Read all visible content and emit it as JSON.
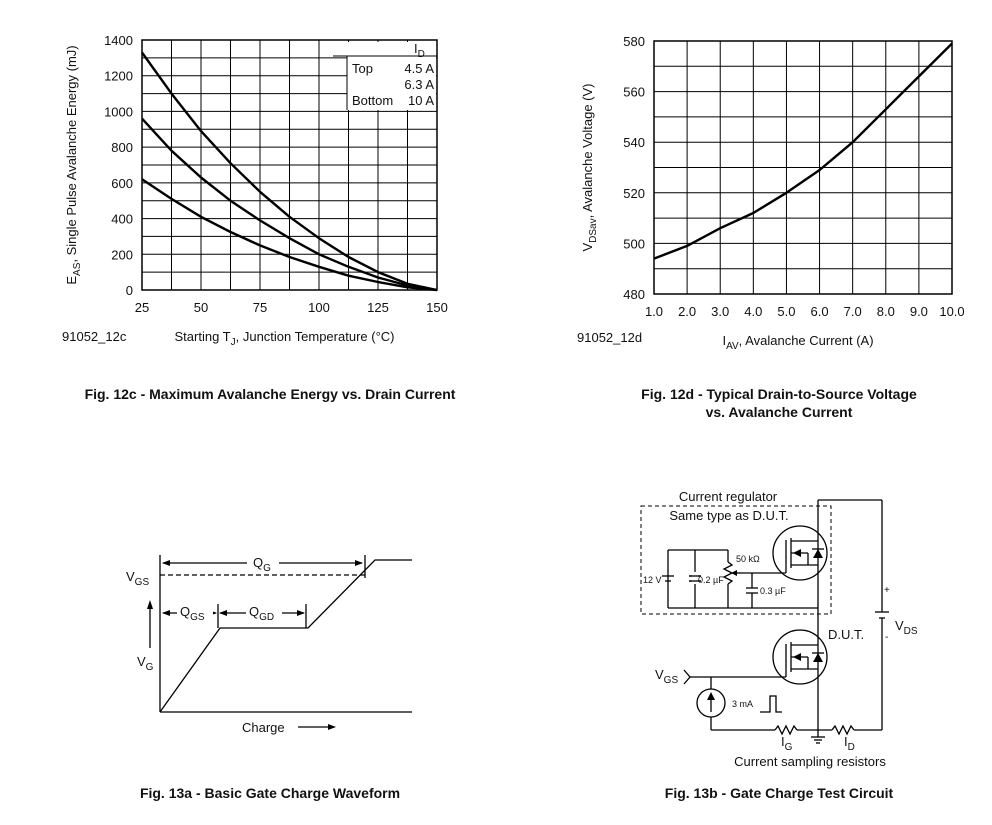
{
  "chart_data": [
    {
      "type": "line",
      "figure_id": "91052_12c",
      "caption": "Fig. 12c - Maximum Avalanche Energy vs. Drain Current",
      "x_label": {
        "pre": "Starting T",
        "sub": "J",
        "post": ", Junction Temperature (°C)"
      },
      "y_label": {
        "pre": "E",
        "sub": "AS",
        "post": ", Single Pulse Avalanche Energy (mJ)"
      },
      "x": [
        25,
        37.5,
        50,
        62.5,
        75,
        87.5,
        100,
        112.5,
        125,
        137.5,
        150
      ],
      "xlim": [
        25,
        150
      ],
      "xticks": [
        25,
        50,
        75,
        100,
        125,
        150
      ],
      "ylim": [
        0,
        1400
      ],
      "yticks": [
        0,
        200,
        400,
        600,
        800,
        1000,
        1200,
        1400
      ],
      "grid": true,
      "legend": {
        "title": {
          "pre": "I",
          "sub": "D"
        },
        "top_label": "Top",
        "bottom_label": "Bottom",
        "position": "upper right"
      },
      "series": [
        {
          "name": "4.5 A",
          "color": "#000000",
          "values": [
            1330,
            1100,
            890,
            710,
            550,
            410,
            290,
            185,
            100,
            35,
            0
          ]
        },
        {
          "name": "6.3 A",
          "color": "#000000",
          "values": [
            960,
            780,
            630,
            500,
            390,
            290,
            200,
            130,
            70,
            25,
            0
          ]
        },
        {
          "name": "10 A",
          "color": "#000000",
          "values": [
            620,
            510,
            410,
            325,
            250,
            185,
            130,
            80,
            45,
            15,
            0
          ]
        }
      ]
    },
    {
      "type": "line",
      "figure_id": "91052_12d",
      "caption": [
        "Fig. 12d - Typical Drain-to-Source Voltage",
        "vs. Avalanche Current"
      ],
      "x_label": {
        "pre": "I",
        "sub": "AV",
        "post": ", Avalanche Current (A)"
      },
      "y_label": {
        "pre": "V",
        "sub": "DSav",
        "post": ", Avalanche Voltage (V)"
      },
      "x": [
        1,
        2,
        3,
        4,
        5,
        6,
        7,
        8,
        9,
        10
      ],
      "xlim": [
        1,
        10
      ],
      "xticks": [
        {
          "value": 1,
          "label": "1.0"
        },
        {
          "value": 2,
          "label": "2.0"
        },
        {
          "value": 3,
          "label": "3.0"
        },
        {
          "value": 4,
          "label": "4.0"
        },
        {
          "value": 5,
          "label": "5.0"
        },
        {
          "value": 6,
          "label": "6.0"
        },
        {
          "value": 7,
          "label": "7.0"
        },
        {
          "value": 8,
          "label": "8.0"
        },
        {
          "value": 9,
          "label": "9.0"
        },
        {
          "value": 10,
          "label": "10.0"
        }
      ],
      "ylim": [
        480,
        580
      ],
      "yticks": [
        480,
        500,
        520,
        540,
        560,
        580
      ],
      "grid": true,
      "series": [
        {
          "name": "V",
          "color": "#000000",
          "values": [
            494,
            499,
            506,
            512,
            520,
            529,
            540,
            553,
            566,
            579
          ]
        }
      ]
    }
  ],
  "diagrams": [
    {
      "caption": "Fig. 13a - Basic Gate Charge Waveform",
      "vgs": {
        "pre": "V",
        "sub": "GS"
      },
      "qg": {
        "pre": "Q",
        "sub": "G"
      },
      "qgs": {
        "pre": "Q",
        "sub": "GS"
      },
      "qgd": {
        "pre": "Q",
        "sub": "GD"
      },
      "vg": {
        "pre": "V",
        "sub": "G"
      },
      "charge": "Charge"
    },
    {
      "caption": "Fig. 13b - Gate Charge Test Circuit",
      "regulator_title": "Current regulator",
      "regulator_subtitle": "Same type as D.U.T.",
      "resistor": "50 kΩ",
      "battery": "12 V",
      "cap1": "0.2 µF",
      "cap2": "0.3 µF",
      "dut": "D.U.T.",
      "vds": {
        "pre": "V",
        "sub": "DS"
      },
      "plus": "+",
      "minus": "-",
      "vgs": {
        "pre": "V",
        "sub": "GS"
      },
      "source": "3 mA",
      "ig": {
        "pre": "I",
        "sub": "G"
      },
      "id": {
        "pre": "I",
        "sub": "D"
      },
      "sampling": "Current sampling resistors"
    }
  ]
}
